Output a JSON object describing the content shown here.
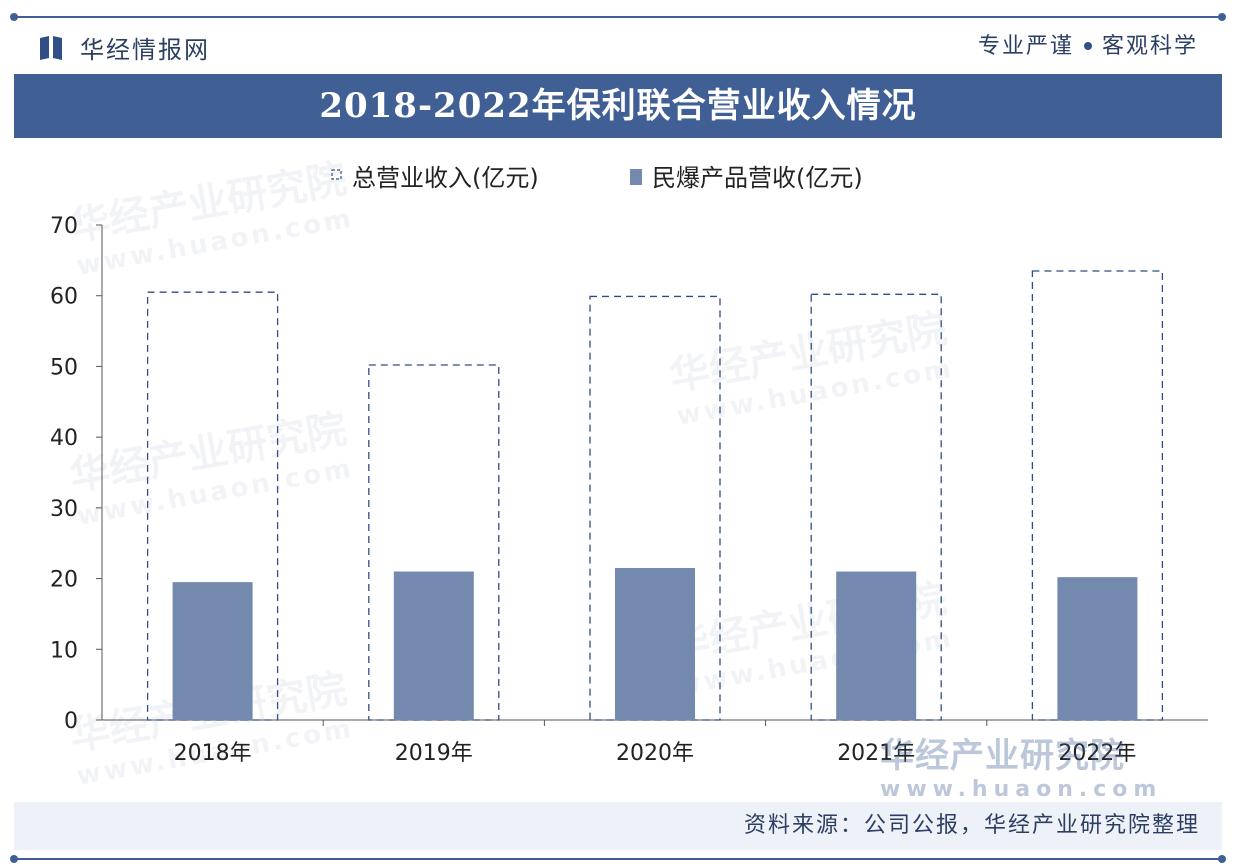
{
  "header": {
    "brand": "华经情报网",
    "slogan_left": "专业严谨",
    "slogan_right": "客观科学",
    "title": "2018-2022年保利联合营业收入情况"
  },
  "watermark": {
    "name": "华经产业研究院",
    "url": "www.huaon.com"
  },
  "footer": {
    "source": "资料来源：公司公报，华经产业研究院整理"
  },
  "colors": {
    "accent": "#3f5f95",
    "bar": "#7389ad",
    "dash": "#2f4f85",
    "text": "#2c3f63"
  },
  "chart_data": {
    "type": "bar",
    "categories": [
      "2018年",
      "2019年",
      "2020年",
      "2021年",
      "2022年"
    ],
    "series": [
      {
        "name": "总营业收入(亿元)",
        "style": "dashed-outline",
        "values": [
          60.5,
          50.2,
          59.9,
          60.2,
          63.5
        ]
      },
      {
        "name": "民爆产品营收(亿元)",
        "style": "filled",
        "values": [
          19.5,
          21.0,
          21.5,
          21.0,
          20.2
        ]
      }
    ],
    "yticks": [
      0,
      10,
      20,
      30,
      40,
      50,
      60,
      70
    ],
    "ylim": [
      0,
      70
    ],
    "grid": false,
    "legend": "top"
  }
}
